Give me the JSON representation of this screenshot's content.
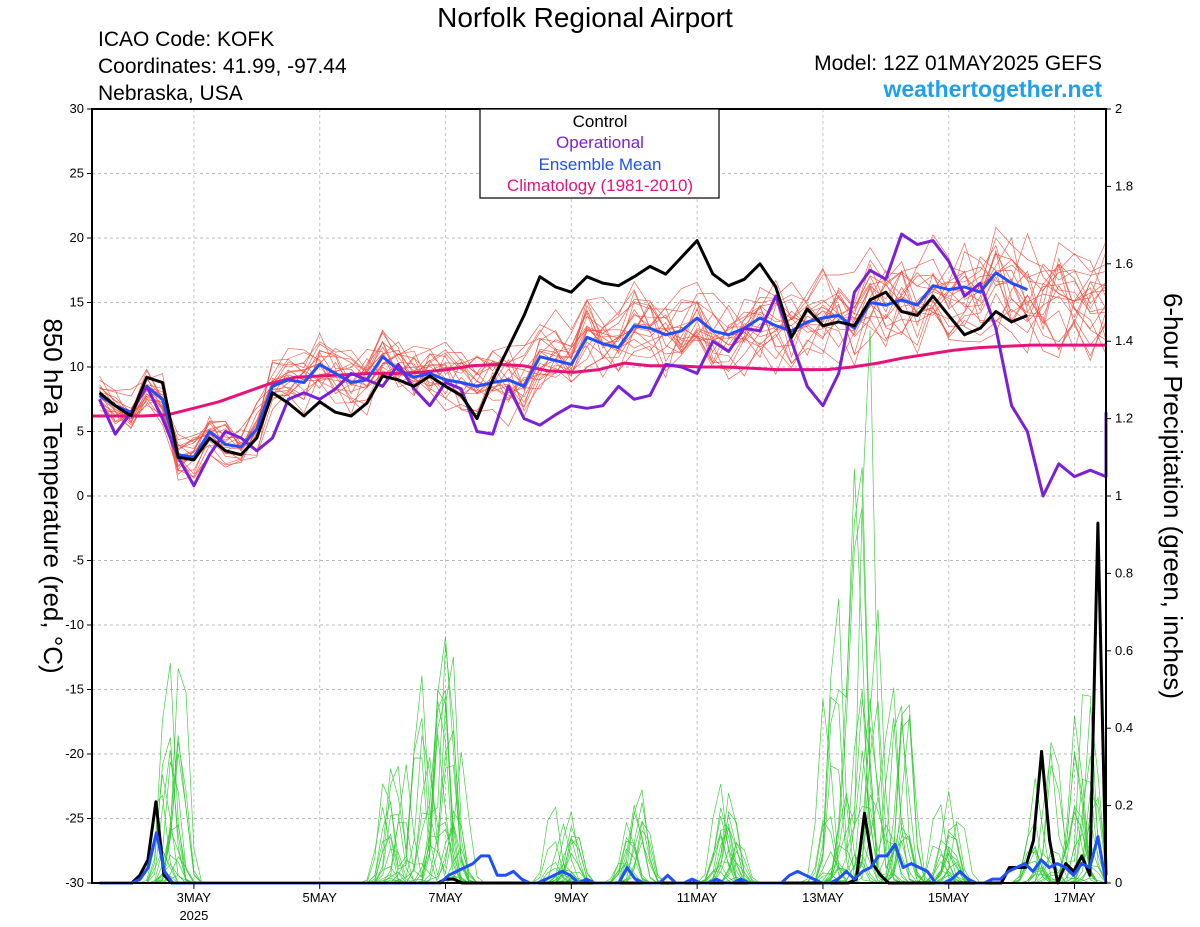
{
  "header": {
    "title": "Norfolk Regional Airport",
    "icao": "ICAO Code: KOFK",
    "coordinates": "Coordinates: 41.99, -97.44",
    "region": "Nebraska, USA",
    "model": "Model: 12Z 01MAY2025 GEFS",
    "site": "weathertogether.net"
  },
  "colors": {
    "members_temp": "#f04a3a",
    "members_precip": "#2ecc2e",
    "control": "#000000",
    "operational": "#7b1fd8",
    "ensemble_mean": "#1f4fff",
    "climatology": "#e8137a",
    "site": "#1ea0ef"
  },
  "chart_data": {
    "type": "line",
    "xlabel": "",
    "ylabel_left": "850 hPa Temperature (red, °C)",
    "ylabel_right": "6-hour Precipitation (green, inches)",
    "ylim_left": [
      -30,
      30
    ],
    "ylim_right": [
      0,
      2
    ],
    "x_unit": "days since 01 May 2025 00Z",
    "xlim": [
      0.38,
      16.5
    ],
    "ytick_labels_left": [
      "30",
      "25",
      "20",
      "15",
      "10",
      "5",
      "0",
      "-5",
      "-10",
      "-15",
      "-20",
      "-25",
      "-30"
    ],
    "ytick_labels_right": [
      "2",
      "1.8",
      "1.6",
      "1.4",
      "1.2",
      "1",
      "0.8",
      "0.6",
      "0.4",
      "0.2",
      "0"
    ],
    "xtick_labels": [
      {
        "x": 2,
        "label": "3MAY"
      },
      {
        "x": 4,
        "label": "5MAY"
      },
      {
        "x": 6,
        "label": "7MAY"
      },
      {
        "x": 8,
        "label": "9MAY"
      },
      {
        "x": 10,
        "label": "11MAY"
      },
      {
        "x": 12,
        "label": "13MAY"
      },
      {
        "x": 14,
        "label": "15MAY"
      },
      {
        "x": 16,
        "label": "17MAY"
      }
    ],
    "year_label": "2025",
    "legend": {
      "placement": "top-center",
      "entries": [
        "Control",
        "Operational",
        "Ensemble Mean",
        "Climatology (1981-2010)"
      ]
    },
    "grid": true,
    "temp_start": 0.5,
    "temp_step": 0.25,
    "series": [
      {
        "name": "Control",
        "axis": "left",
        "values": [
          8.0,
          7.0,
          6.2,
          9.2,
          8.8,
          3.0,
          2.8,
          4.5,
          3.5,
          3.2,
          4.5,
          8.0,
          7.2,
          6.2,
          7.3,
          6.5,
          6.2,
          7.2,
          9.3,
          9.0,
          8.5,
          9.3,
          8.5,
          7.8,
          6.0,
          9.0,
          11.5,
          14.0,
          17.0,
          16.2,
          15.8,
          17.0,
          16.5,
          16.3,
          17.0,
          17.8,
          17.2,
          18.5,
          19.8,
          17.2,
          16.3,
          16.8,
          18.0,
          16.2,
          12.3,
          14.5,
          13.2,
          13.5,
          13.2,
          15.2,
          15.8,
          14.3,
          14.0,
          15.5,
          14.0,
          12.5,
          13.0,
          14.3,
          13.5,
          14.0
        ]
      },
      {
        "name": "Operational",
        "axis": "left",
        "values": [
          7.5,
          4.8,
          6.5,
          8.5,
          6.0,
          3.0,
          0.8,
          3.2,
          5.0,
          4.5,
          3.5,
          4.5,
          7.5,
          8.0,
          7.5,
          8.3,
          9.5,
          9.0,
          8.5,
          10.2,
          8.3,
          7.0,
          8.8,
          8.3,
          5.0,
          4.8,
          8.5,
          6.0,
          5.5,
          6.3,
          7.0,
          6.8,
          7.0,
          8.5,
          7.5,
          7.8,
          10.2,
          10.0,
          9.5,
          12.0,
          11.2,
          13.0,
          12.8,
          15.5,
          12.0,
          8.5,
          7.0,
          9.5,
          15.8,
          17.5,
          16.8,
          20.3,
          19.5,
          19.8,
          18.2,
          15.5,
          16.5,
          13.0,
          7.0,
          5.0,
          0.0,
          2.5,
          1.5,
          2.0,
          1.5,
          2.5,
          3.0,
          2.5,
          4.5,
          4.0,
          4.5,
          5.8,
          6.5
        ]
      },
      {
        "name": "Ensemble Mean",
        "axis": "left",
        "values": [
          7.8,
          7.0,
          6.5,
          8.5,
          7.5,
          3.2,
          3.0,
          5.0,
          4.0,
          3.8,
          5.2,
          8.5,
          9.0,
          8.8,
          10.2,
          9.5,
          8.8,
          9.0,
          10.8,
          9.8,
          9.2,
          9.5,
          9.0,
          8.8,
          8.5,
          8.8,
          9.0,
          8.5,
          10.8,
          10.5,
          10.2,
          12.3,
          11.8,
          11.5,
          13.2,
          13.0,
          12.5,
          12.8,
          13.8,
          12.8,
          12.5,
          13.0,
          13.8,
          13.2,
          12.8,
          13.5,
          13.8,
          14.0,
          13.0,
          15.0,
          14.8,
          15.2,
          14.8,
          16.3,
          16.0,
          16.2,
          15.8,
          17.3,
          16.5,
          16.0
        ]
      },
      {
        "name": "Climatology (1981-2010)",
        "axis": "left",
        "values": [
          6.2,
          6.2,
          6.2,
          6.3,
          6.8,
          7.3,
          8.0,
          8.7,
          9.2,
          9.3,
          9.4,
          9.5,
          9.5,
          9.6,
          9.8,
          10.1,
          10.2,
          10.1,
          9.7,
          9.6,
          9.8,
          10.3,
          10.1,
          10.1,
          10.0,
          10.0,
          9.9,
          9.8,
          9.8,
          9.8,
          10.0,
          10.3,
          10.7,
          11.0,
          11.3,
          11.5,
          11.6,
          11.7,
          11.7,
          11.7,
          11.7
        ]
      },
      {
        "name": "Control",
        "axis": "right",
        "values": [
          0.0,
          0.0,
          0.0,
          0.0,
          0.0,
          0.02,
          0.06,
          0.21,
          0.02,
          0.0,
          0.0,
          0.0,
          0.0,
          0.0,
          0.0,
          0.0,
          0.0,
          0.0,
          0.0,
          0.0,
          0.0,
          0.0,
          0.0,
          0.0,
          0.0,
          0.0,
          0.0,
          0.0,
          0.0,
          0.0,
          0.0,
          0.0,
          0.0,
          0.0,
          0.0,
          0.0,
          0.0,
          0.0,
          0.0,
          0.0,
          0.0,
          0.0,
          0.0,
          0.01,
          0.01,
          0.0,
          0.0,
          0.0,
          0.0,
          0.0,
          0.0,
          0.0,
          0.0,
          0.0,
          0.0,
          0.0,
          0.0,
          0.0,
          0.0,
          0.0,
          0.0,
          0.0,
          0.0,
          0.0,
          0.0,
          0.0,
          0.0,
          0.0,
          0.0,
          0.0,
          0.0,
          0.0,
          0.0,
          0.0,
          0.0,
          0.0,
          0.0,
          0.0,
          0.0,
          0.0,
          0.0,
          0.0,
          0.0,
          0.0,
          0.0,
          0.0,
          0.0,
          0.0,
          0.0,
          0.0,
          0.0,
          0.0,
          0.0,
          0.0,
          0.01,
          0.18,
          0.05,
          0.02,
          0.0,
          0.0,
          0.0,
          0.0,
          0.0,
          0.0,
          0.0,
          0.0,
          0.0,
          0.0,
          0.0,
          0.0,
          0.0,
          0.0,
          0.0,
          0.04,
          0.04,
          0.04,
          0.11,
          0.34,
          0.11,
          0.0,
          0.05,
          0.03,
          0.07,
          0.02,
          0.93,
          0.02
        ]
      },
      {
        "name": "Ensemble Mean",
        "axis": "right",
        "values": [
          0.0,
          0.0,
          0.0,
          0.0,
          0.0,
          0.01,
          0.04,
          0.13,
          0.03,
          0.0,
          0.0,
          0.0,
          0.0,
          0.0,
          0.0,
          0.0,
          0.0,
          0.0,
          0.0,
          0.0,
          0.0,
          0.0,
          0.0,
          0.0,
          0.0,
          0.0,
          0.0,
          0.0,
          0.0,
          0.0,
          0.0,
          0.0,
          0.0,
          0.0,
          0.0,
          0.0,
          0.0,
          0.0,
          0.0,
          0.0,
          0.0,
          0.0,
          0.0,
          0.02,
          0.03,
          0.04,
          0.05,
          0.07,
          0.07,
          0.02,
          0.02,
          0.03,
          0.01,
          0.0,
          0.0,
          0.01,
          0.02,
          0.03,
          0.02,
          0.0,
          0.01,
          0.0,
          0.0,
          0.0,
          0.0,
          0.04,
          0.01,
          0.0,
          0.0,
          0.0,
          0.02,
          0.0,
          0.0,
          0.01,
          0.0,
          0.0,
          0.01,
          0.0,
          0.0,
          0.01,
          0.0,
          0.0,
          0.0,
          0.0,
          0.0,
          0.02,
          0.03,
          0.02,
          0.01,
          0.0,
          0.0,
          0.01,
          0.03,
          0.01,
          0.03,
          0.04,
          0.07,
          0.07,
          0.1,
          0.04,
          0.05,
          0.04,
          0.03,
          0.0,
          0.0,
          0.01,
          0.03,
          0.01,
          0.0,
          0.0,
          0.01,
          0.01,
          0.03,
          0.04,
          0.05,
          0.03,
          0.06,
          0.04,
          0.05,
          0.04,
          0.02,
          0.05,
          0.04,
          0.12,
          0.0
        ]
      }
    ],
    "members": {
      "temperature": {
        "axis": "left",
        "count": 20,
        "start": 0.5,
        "step": 0.25,
        "climb_to": 15,
        "spread_start": 2.2,
        "spread_end": 5.5
      },
      "precipitation": {
        "axis": "right",
        "count": 20,
        "start": 0.5,
        "step": 0.125,
        "peaks": [
          {
            "x": 1.62,
            "max": 0.68
          },
          {
            "x": 5.2,
            "max": 0.37
          },
          {
            "x": 5.75,
            "max": 0.62
          },
          {
            "x": 6.1,
            "max": 0.67
          },
          {
            "x": 7.9,
            "max": 0.26
          },
          {
            "x": 9.0,
            "max": 0.27
          },
          {
            "x": 10.5,
            "max": 0.27
          },
          {
            "x": 12.2,
            "max": 0.85
          },
          {
            "x": 12.7,
            "max": 1.74
          },
          {
            "x": 13.2,
            "max": 0.55
          },
          {
            "x": 14.0,
            "max": 0.25
          },
          {
            "x": 15.5,
            "max": 0.43
          },
          {
            "x": 16.2,
            "max": 0.64
          }
        ]
      }
    }
  }
}
